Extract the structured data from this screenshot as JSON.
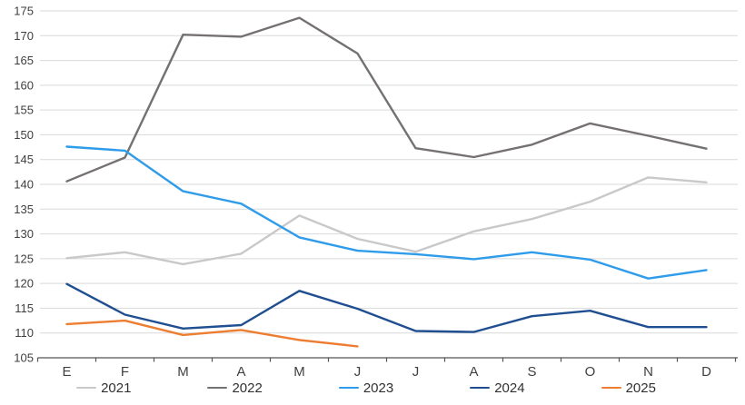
{
  "chart_data": {
    "type": "line",
    "title": "",
    "xlabel": "",
    "ylabel": "",
    "categories": [
      "E",
      "F",
      "M",
      "A",
      "M",
      "J",
      "J",
      "A",
      "S",
      "O",
      "N",
      "D"
    ],
    "series": [
      {
        "name": "2021",
        "color": "#C9C9C9",
        "values": [
          125.1,
          126.3,
          123.9,
          126.0,
          133.7,
          129.0,
          126.4,
          130.5,
          133.0,
          136.5,
          141.4,
          140.4
        ]
      },
      {
        "name": "2022",
        "color": "#757171",
        "values": [
          140.6,
          145.4,
          170.2,
          169.8,
          173.6,
          166.4,
          147.3,
          145.5,
          148.0,
          152.3,
          149.8,
          147.2
        ]
      },
      {
        "name": "2023",
        "color": "#2F9CEB",
        "values": [
          147.6,
          146.8,
          138.6,
          136.1,
          129.3,
          126.6,
          125.9,
          124.9,
          126.3,
          124.8,
          121.0,
          122.7
        ]
      },
      {
        "name": "2024",
        "color": "#1F4E91",
        "values": [
          119.9,
          113.7,
          110.9,
          111.6,
          118.5,
          114.9,
          110.4,
          110.2,
          113.4,
          114.5,
          111.2,
          111.2
        ]
      },
      {
        "name": "2025",
        "color": "#ED7D31",
        "values": [
          111.8,
          112.5,
          109.6,
          110.6,
          108.6,
          107.3
        ]
      }
    ],
    "ylim": [
      105,
      175
    ],
    "y_ticks": [
      105,
      110,
      115,
      120,
      125,
      130,
      135,
      140,
      145,
      150,
      155,
      160,
      165,
      170,
      175
    ],
    "grid": "horizontal",
    "legend_position": "bottom",
    "colors": {
      "gridline": "#D9D9D9",
      "axis": "#555555",
      "tick_text": "#3F3F3F",
      "background": "#FFFFFF"
    }
  }
}
